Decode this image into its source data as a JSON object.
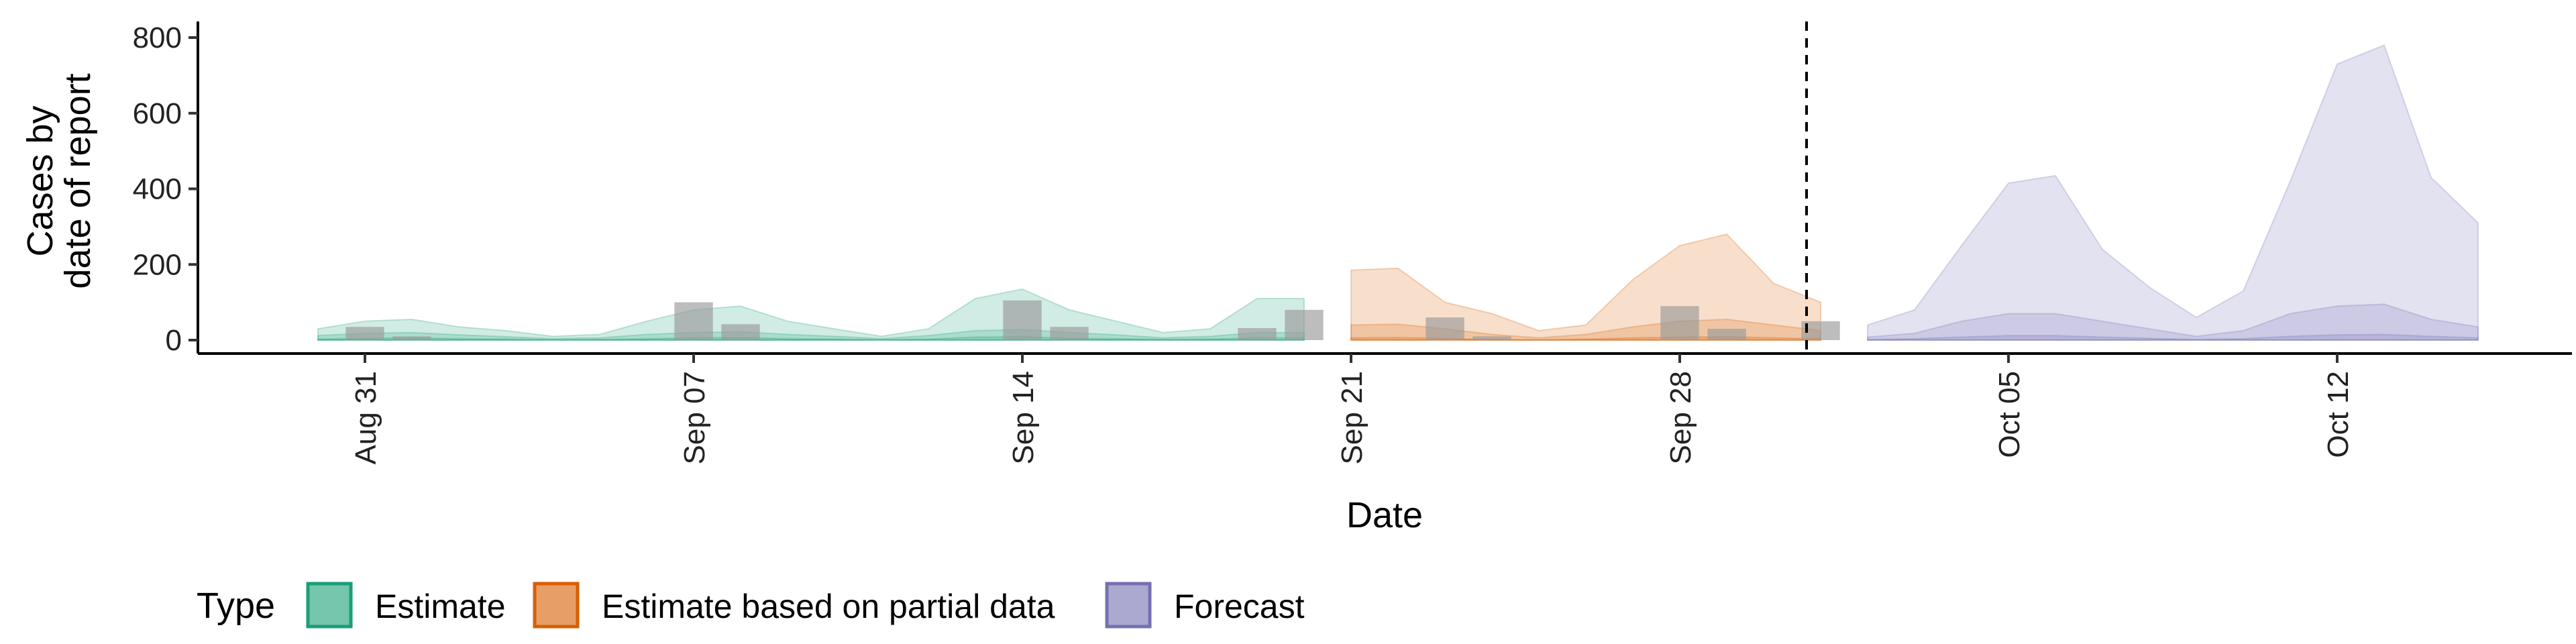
{
  "chart_data": {
    "type": "area",
    "xlabel": "Date",
    "ylabel": [
      "Cases by",
      "date of report"
    ],
    "ylim": [
      0,
      820
    ],
    "yticks": [
      0,
      200,
      400,
      600,
      800
    ],
    "x_start": "Aug 27",
    "x_range_days": [
      0,
      50
    ],
    "xticks": [
      {
        "day": 4,
        "label": "Aug 31"
      },
      {
        "day": 11,
        "label": "Sep 07"
      },
      {
        "day": 18,
        "label": "Sep 14"
      },
      {
        "day": 25,
        "label": "Sep 21"
      },
      {
        "day": 32,
        "label": "Sep 28"
      },
      {
        "day": 39,
        "label": "Oct 05"
      },
      {
        "day": 46,
        "label": "Oct 12"
      }
    ],
    "vline_day": 35,
    "grid": false,
    "legend_position": "bottom-left",
    "legend_title": "Type",
    "series": [
      {
        "name": "Estimate",
        "color": "#1b9e77",
        "days": [
          3,
          4,
          5,
          6,
          7,
          8,
          9,
          10,
          11,
          12,
          13,
          14,
          15,
          16,
          17,
          18,
          19,
          20,
          21,
          22,
          23,
          24
        ],
        "upper90": [
          30,
          50,
          55,
          35,
          25,
          10,
          15,
          50,
          80,
          90,
          50,
          30,
          10,
          30,
          110,
          135,
          80,
          50,
          20,
          30,
          110,
          110
        ],
        "upper50": [
          12,
          18,
          20,
          14,
          9,
          4,
          6,
          15,
          20,
          22,
          15,
          10,
          4,
          12,
          25,
          28,
          20,
          14,
          6,
          10,
          20,
          20
        ],
        "upper20": [
          3,
          5,
          6,
          4,
          3,
          1,
          2,
          4,
          6,
          7,
          4,
          3,
          1,
          3,
          8,
          9,
          5,
          4,
          2,
          3,
          6,
          6
        ]
      },
      {
        "name": "Estimate based on partial data",
        "color": "#d95f02",
        "days": [
          25,
          26,
          27,
          28,
          29,
          30,
          31,
          32,
          33,
          34,
          35
        ],
        "upper90": [
          185,
          190,
          100,
          70,
          25,
          40,
          160,
          250,
          280,
          150,
          100
        ],
        "upper50": [
          40,
          42,
          30,
          15,
          6,
          15,
          35,
          50,
          55,
          40,
          25
        ],
        "upper20": [
          6,
          7,
          5,
          2,
          1,
          3,
          6,
          8,
          9,
          6,
          4
        ]
      },
      {
        "name": "Forecast",
        "color": "#7570b3",
        "days": [
          36,
          37,
          38,
          39,
          40,
          41,
          42,
          43,
          44,
          45,
          46,
          47,
          48,
          49
        ],
        "upper90": [
          40,
          80,
          250,
          415,
          435,
          240,
          140,
          60,
          130,
          420,
          730,
          780,
          430,
          310
        ],
        "upper50": [
          8,
          18,
          50,
          70,
          70,
          50,
          30,
          10,
          25,
          70,
          90,
          95,
          55,
          35
        ],
        "upper20": [
          2,
          4,
          8,
          12,
          12,
          8,
          5,
          2,
          4,
          10,
          14,
          15,
          10,
          6
        ]
      }
    ],
    "observed_cases": {
      "color": "#999999",
      "points": [
        {
          "day": 4,
          "value": 35
        },
        {
          "day": 5,
          "value": 10
        },
        {
          "day": 11,
          "value": 100
        },
        {
          "day": 12,
          "value": 42
        },
        {
          "day": 18,
          "value": 105
        },
        {
          "day": 19,
          "value": 35
        },
        {
          "day": 23,
          "value": 32
        },
        {
          "day": 24,
          "value": 80
        },
        {
          "day": 27,
          "value": 60
        },
        {
          "day": 28,
          "value": 10
        },
        {
          "day": 32,
          "value": 90
        },
        {
          "day": 33,
          "value": 30
        },
        {
          "day": 35,
          "value": 50
        }
      ]
    }
  }
}
